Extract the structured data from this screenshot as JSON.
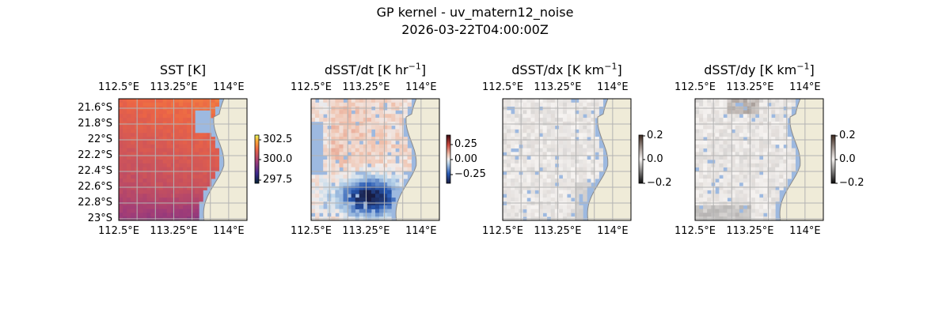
{
  "figure": {
    "title": "GP kernel - uv_matern12_noise",
    "subtitle": "2026-03-22T04:00:00Z"
  },
  "colors": {
    "ocean": "#9db9e0",
    "land": "#efebd8",
    "coast": "#8a8a8a",
    "grid": "#b3b3b3"
  },
  "panels": [
    {
      "title": "SST [K]",
      "title_unit_sup": "",
      "title_tail": "",
      "cbar_ticks": [
        "302.5",
        "300.0",
        "297.5"
      ],
      "cmap": "thermal"
    },
    {
      "title": "dSST/dt [K hr",
      "title_unit_sup": "−1",
      "title_tail": "]",
      "cbar_ticks": [
        "0.25",
        "0.00",
        "−0.25"
      ],
      "cmap": "balance"
    },
    {
      "title": "dSST/dx [K km",
      "title_unit_sup": "−1",
      "title_tail": "]",
      "cbar_ticks": [
        "0.2",
        "0.0",
        "−0.2"
      ],
      "cmap": "gray"
    },
    {
      "title": "dSST/dy [K km",
      "title_unit_sup": "−1",
      "title_tail": "]",
      "cbar_ticks": [
        "0.2",
        "0.0",
        "−0.2"
      ],
      "cmap": "gray"
    }
  ],
  "chart_data": {
    "type": "heatmap",
    "lon_ticks": [
      "112.5°E",
      "113.25°E",
      "114°E"
    ],
    "lat_ticks": [
      "21.6°S",
      "21.8°S",
      "22°S",
      "22.2°S",
      "22.4°S",
      "22.6°S",
      "22.8°S",
      "23°S"
    ],
    "lon_range": [
      112.5,
      114.25
    ],
    "lat_range": [
      -23.02,
      -21.48
    ],
    "grid": true,
    "sst_range": [
      296.5,
      303.5
    ],
    "dsst_dt_range": [
      -0.4,
      0.4
    ],
    "grad_range": [
      -0.2,
      0.2
    ]
  }
}
